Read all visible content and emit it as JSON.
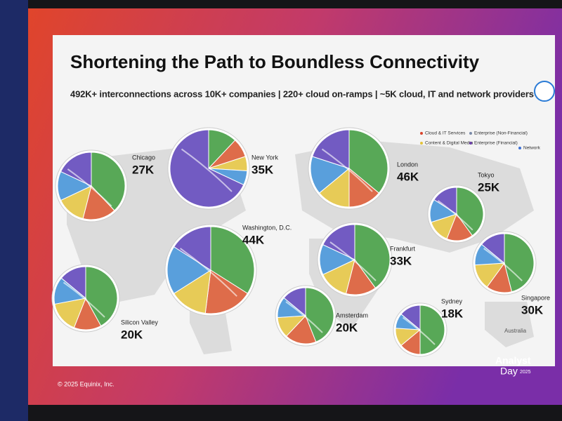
{
  "header": {
    "title": "Shortening the Path to Boundless Connectivity",
    "subtitle": "492K+ interconnections across 10K+ companies | 220+ cloud on-ramps | ~5K cloud, IT and network providers"
  },
  "legend": [
    "Cloud & IT Services",
    "Enterprise (Non-Financial)",
    "Content & Digital Media",
    "Enterprise (Financial)",
    "Network"
  ],
  "cities": [
    {
      "name": "Chicago",
      "value": "27K"
    },
    {
      "name": "New York",
      "value": "35K"
    },
    {
      "name": "Washington, D.C.",
      "value": "44K"
    },
    {
      "name": "Silicon Valley",
      "value": "20K"
    },
    {
      "name": "London",
      "value": "46K"
    },
    {
      "name": "Tokyo",
      "value": "25K"
    },
    {
      "name": "Frankfurt",
      "value": "33K"
    },
    {
      "name": "Amsterdam",
      "value": "20K"
    },
    {
      "name": "Sydney",
      "value": "18K"
    },
    {
      "name": "Singapore",
      "value": "30K"
    }
  ],
  "map_label": "Australia",
  "footer": {
    "copyright": "© 2025 Equinix, Inc.",
    "event": "Analyst",
    "event2": "Day",
    "year": "2025"
  }
}
